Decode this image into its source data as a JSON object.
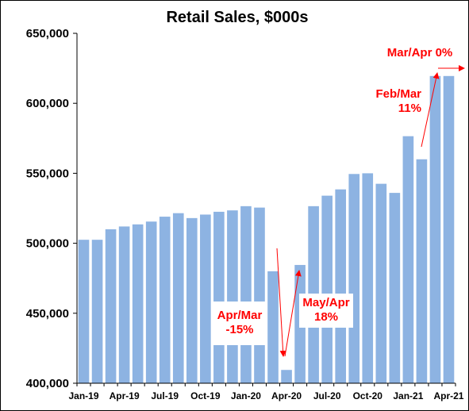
{
  "chart_data": {
    "type": "bar",
    "title": "Retail Sales, $000s",
    "xlabel": "",
    "ylabel": "",
    "ylim": [
      400000,
      650000
    ],
    "yticks": [
      400000,
      450000,
      500000,
      550000,
      600000,
      650000
    ],
    "ytick_labels": [
      "400,000",
      "450,000",
      "500,000",
      "550,000",
      "600,000",
      "650,000"
    ],
    "categories": [
      "Jan-19",
      "Feb-19",
      "Mar-19",
      "Apr-19",
      "May-19",
      "Jun-19",
      "Jul-19",
      "Aug-19",
      "Sep-19",
      "Oct-19",
      "Nov-19",
      "Dec-19",
      "Jan-20",
      "Feb-20",
      "Mar-20",
      "Apr-20",
      "May-20",
      "Jun-20",
      "Jul-20",
      "Aug-20",
      "Sep-20",
      "Oct-20",
      "Nov-20",
      "Dec-20",
      "Jan-21",
      "Feb-21",
      "Mar-21",
      "Apr-21"
    ],
    "xtick_labels": [
      "Jan-19",
      "Apr-19",
      "Jul-19",
      "Oct-19",
      "Jan-20",
      "Apr-20",
      "Jul-20",
      "Oct-20",
      "Jan-21",
      "Apr-21"
    ],
    "values": [
      502500,
      502500,
      510000,
      512000,
      513500,
      515500,
      519000,
      521500,
      518000,
      520500,
      522500,
      523500,
      526500,
      525500,
      480000,
      409500,
      484500,
      526500,
      534000,
      538500,
      549500,
      550000,
      542500,
      536000,
      576500,
      560000,
      619500,
      619500
    ],
    "bar_color": "#8db3e2",
    "grid": false,
    "legend": "none",
    "annotations": [
      {
        "lines": [
          "Apr/Mar",
          "-15%"
        ],
        "from_index": 14,
        "to_index": 15,
        "color": "#ff0000"
      },
      {
        "lines": [
          "May/Apr",
          "18%"
        ],
        "from_index": 15,
        "to_index": 16,
        "color": "#ff0000"
      },
      {
        "lines": [
          "Feb/Mar",
          "11%"
        ],
        "from_index": 25,
        "to_index": 26,
        "color": "#ff0000"
      },
      {
        "lines": [
          "Mar/Apr 0%"
        ],
        "from_index": 26,
        "to_index": 27,
        "color": "#ff0000"
      }
    ]
  }
}
